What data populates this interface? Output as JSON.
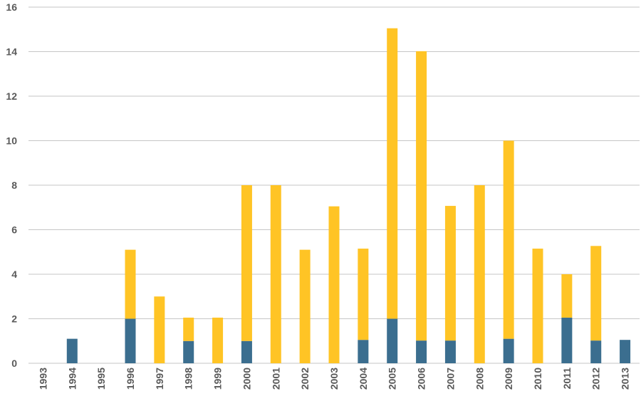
{
  "chart_data": {
    "type": "bar",
    "stacked": true,
    "categories": [
      "1993",
      "1994",
      "1995",
      "1996",
      "1997",
      "1998",
      "1999",
      "2000",
      "2001",
      "2002",
      "2003",
      "2004",
      "2005",
      "2006",
      "2007",
      "2008",
      "2009",
      "2010",
      "2011",
      "2012",
      "2013"
    ],
    "series": [
      {
        "color": "#3b6e8f",
        "values": [
          0,
          1.1,
          0,
          2,
          0,
          1,
          0,
          1,
          0,
          0,
          0,
          1.05,
          2,
          1.02,
          1.02,
          0,
          1.1,
          0,
          2.05,
          1.02,
          1.05
        ]
      },
      {
        "color": "#ffc425",
        "values": [
          0,
          0,
          0,
          3.1,
          3,
          1.05,
          2.05,
          7,
          8,
          5.1,
          7.05,
          4.1,
          13.05,
          13,
          6.05,
          8,
          8.9,
          5.15,
          1.95,
          4.25,
          0
        ]
      }
    ],
    "y_ticks": [
      "0",
      "2",
      "4",
      "6",
      "8",
      "10",
      "12",
      "14",
      "16"
    ],
    "ylim": [
      0,
      16
    ],
    "grid": true,
    "legend": "none"
  }
}
